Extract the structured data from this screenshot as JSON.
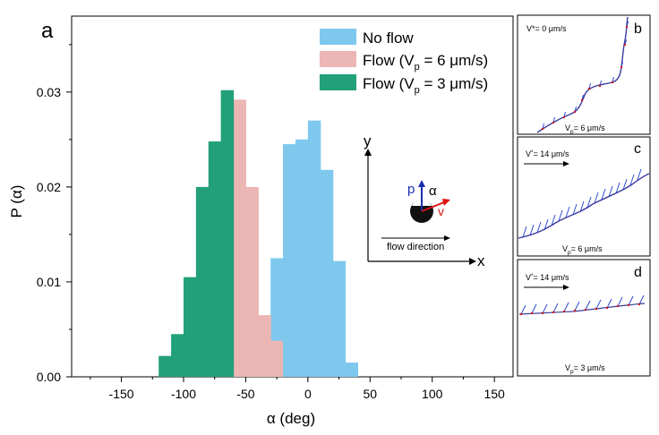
{
  "chart_data": [
    {
      "type": "bar",
      "panel_label": "a",
      "xlabel": "α (deg)",
      "ylabel": "P (α)",
      "xlim": [
        -190,
        165
      ],
      "ylim": [
        0,
        0.038
      ],
      "bin_width": 10,
      "xticks": [
        -150,
        -100,
        -50,
        0,
        50,
        100,
        150
      ],
      "yticks": [
        0.0,
        0.01,
        0.02,
        0.03
      ],
      "ytick_labels": [
        "0.00",
        "0.01",
        "0.02",
        "0.03"
      ],
      "legend_position": "top-right",
      "series": [
        {
          "name": "No flow",
          "color": "#7ec8ee",
          "bins": [
            [
              -55,
              0.0004
            ],
            [
              -45,
              0.0038
            ],
            [
              -35,
              0.0038
            ],
            [
              -25,
              0.0125
            ],
            [
              -15,
              0.0245
            ],
            [
              -5,
              0.025
            ],
            [
              5,
              0.027
            ],
            [
              15,
              0.0218
            ],
            [
              25,
              0.0122
            ],
            [
              35,
              0.0015
            ]
          ],
          "overlaid_bins": [
            [
              -15,
              0.0245
            ],
            [
              -5,
              0.025
            ]
          ]
        },
        {
          "name_main": "Flow (V",
          "name_sub": "p",
          "name_tail": " = 6 μm/s)",
          "color": "#ebb6b4",
          "bins": [
            [
              -75,
              0.018
            ],
            [
              -65,
              0.0185
            ],
            [
              -55,
              0.0292
            ],
            [
              -45,
              0.02
            ],
            [
              -35,
              0.0065
            ],
            [
              -25,
              0.0038
            ]
          ]
        },
        {
          "name_main": "Flow (V",
          "name_sub": "p",
          "name_tail": " = 3 μm/s)",
          "color": "#22a07a",
          "bins": [
            [
              -115,
              0.0022
            ],
            [
              -105,
              0.0045
            ],
            [
              -95,
              0.0105
            ],
            [
              -85,
              0.02
            ],
            [
              -75,
              0.0248
            ],
            [
              -65,
              0.0302
            ]
          ]
        }
      ]
    }
  ],
  "inset_axes": {
    "y": "y",
    "x": "x",
    "p": "p",
    "alpha": "α",
    "v": "v",
    "flow": "flow direction"
  },
  "panels": [
    {
      "label": "b",
      "top_text": "V*= 0 μm/s",
      "bottom_main": "V",
      "bottom_sub": "p",
      "bottom_tail": "= 6 μm/s"
    },
    {
      "label": "c",
      "top_main": "V",
      "top_sup": "*",
      "top_tail": "= 14 μm/s",
      "bottom_main": "V",
      "bottom_sub": "p",
      "bottom_tail": "= 6 μm/s"
    },
    {
      "label": "d",
      "top_main": "V",
      "top_sup": "*",
      "top_tail": "= 14 μm/s",
      "bottom_main": "V",
      "bottom_sub": "p",
      "bottom_tail": "= 3 μm/s"
    }
  ],
  "colors": {
    "trajectory": "#3b3b9c",
    "orientation": "#1f3fd0",
    "points": "#d01818",
    "p_arrow": "#1a2fb0",
    "v_arrow": "#e01010"
  }
}
